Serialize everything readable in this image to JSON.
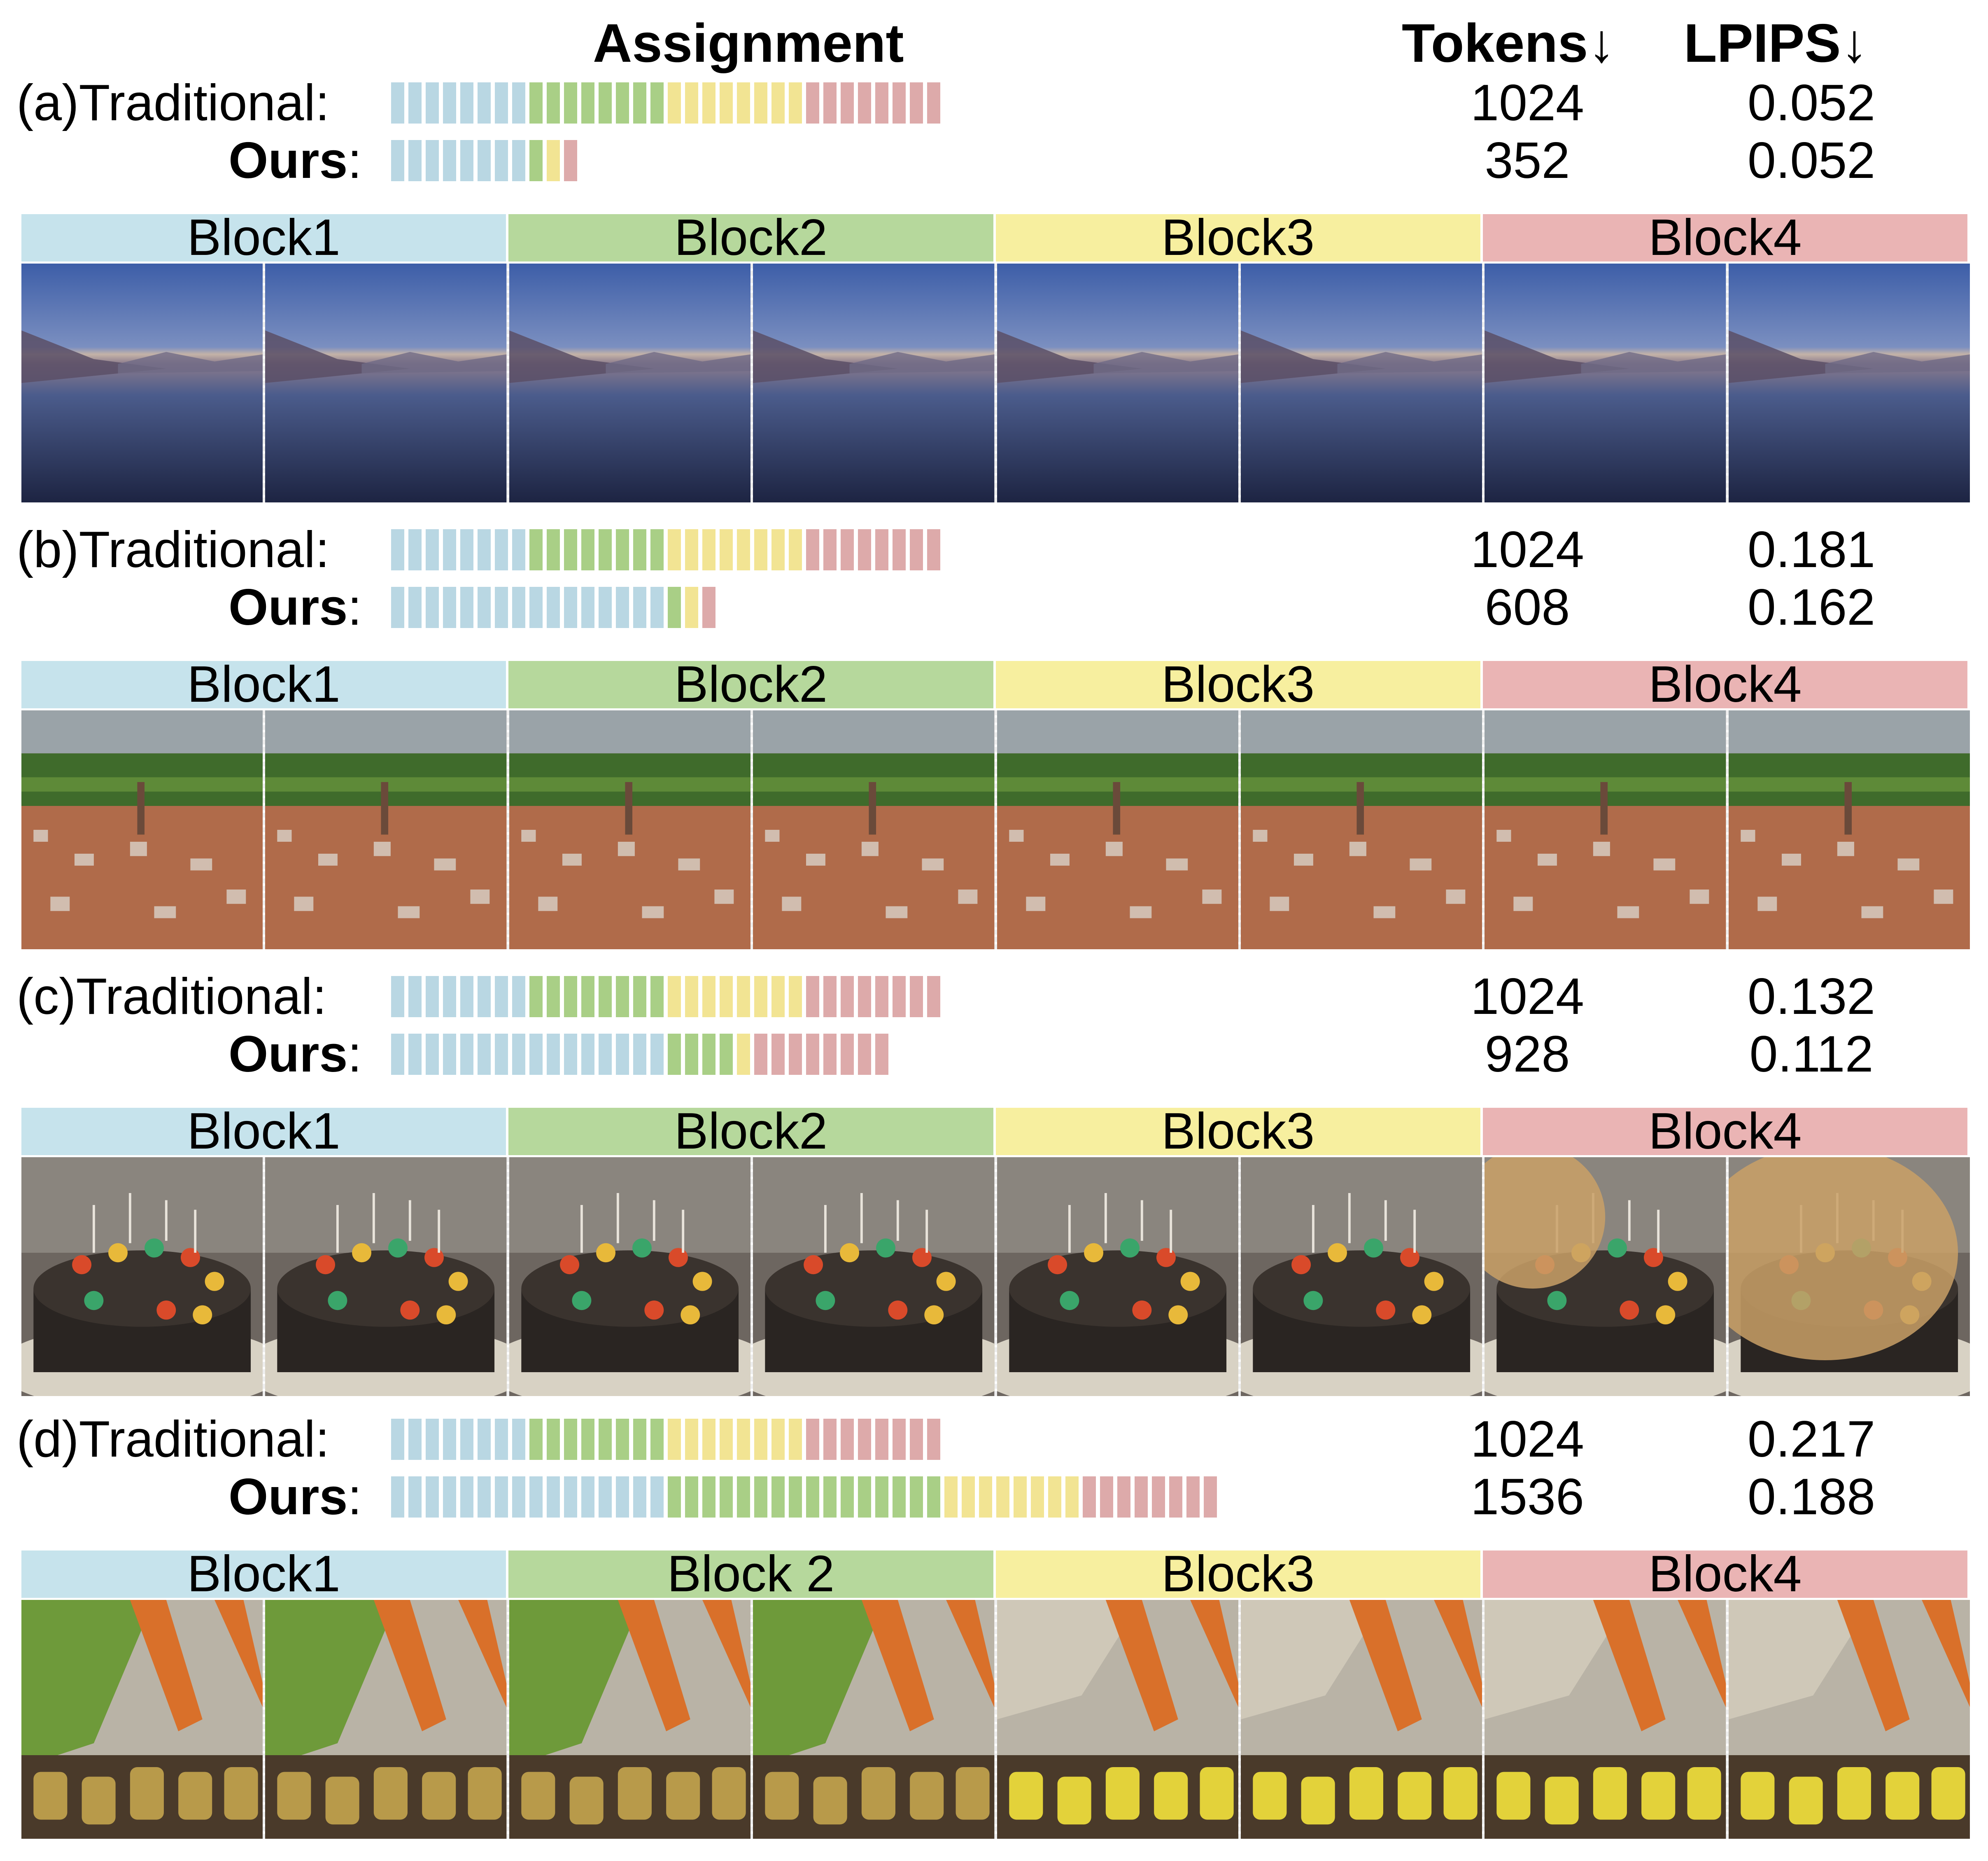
{
  "header": {
    "assignment": "Assignment",
    "tokens": "Tokens↓",
    "lpips": "LPIPS↓"
  },
  "colors": {
    "block1": "#c6e3ec",
    "block2": "#b6d89c",
    "block3": "#f7ef9f",
    "block4": "#eab4b4",
    "seg1": "#b9d7e3",
    "seg2": "#a9cf86",
    "seg3": "#f2e493",
    "seg4": "#ddaaaa"
  },
  "rows": [
    {
      "tag": "(a)",
      "traditional_label": "Traditional:",
      "ours_label": "Ours",
      "ours_colon": ":",
      "traditional": {
        "tokens": "1024",
        "lpips": "0.052",
        "segments": [
          8,
          8,
          8,
          8
        ]
      },
      "ours": {
        "tokens": "352",
        "lpips": "0.052",
        "segments": [
          8,
          1,
          1,
          1
        ]
      },
      "blocks": [
        "Block1",
        "Block2",
        "Block3",
        "Block4"
      ],
      "scene": "lake"
    },
    {
      "tag": "(b)",
      "traditional_label": "Traditional:",
      "ours_label": "Ours",
      "ours_colon": ":",
      "traditional": {
        "tokens": "1024",
        "lpips": "0.181",
        "segments": [
          8,
          8,
          8,
          8
        ]
      },
      "ours": {
        "tokens": "608",
        "lpips": "0.162",
        "segments": [
          16,
          1,
          1,
          1
        ]
      },
      "blocks": [
        "Block1",
        "Block2",
        "Block3",
        "Block4"
      ],
      "scene": "town"
    },
    {
      "tag": "(c)",
      "traditional_label": "Traditional:",
      "ours_label": "Ours",
      "ours_colon": ":",
      "traditional": {
        "tokens": "1024",
        "lpips": "0.132",
        "segments": [
          8,
          8,
          8,
          8
        ]
      },
      "ours": {
        "tokens": "928",
        "lpips": "0.112",
        "segments": [
          16,
          4,
          1,
          8
        ]
      },
      "blocks": [
        "Block1",
        "Block2",
        "Block3",
        "Block4"
      ],
      "scene": "cake"
    },
    {
      "tag": "(d)",
      "traditional_label": "Traditional:",
      "ours_label": "Ours",
      "ours_colon": ":",
      "traditional": {
        "tokens": "1024",
        "lpips": "0.217",
        "segments": [
          8,
          8,
          8,
          8
        ]
      },
      "ours": {
        "tokens": "1536",
        "lpips": "0.188",
        "segments": [
          16,
          16,
          8,
          8
        ]
      },
      "blocks": [
        "Block1",
        "Block 2",
        "Block3",
        "Block4"
      ],
      "scene": "coaster"
    }
  ]
}
